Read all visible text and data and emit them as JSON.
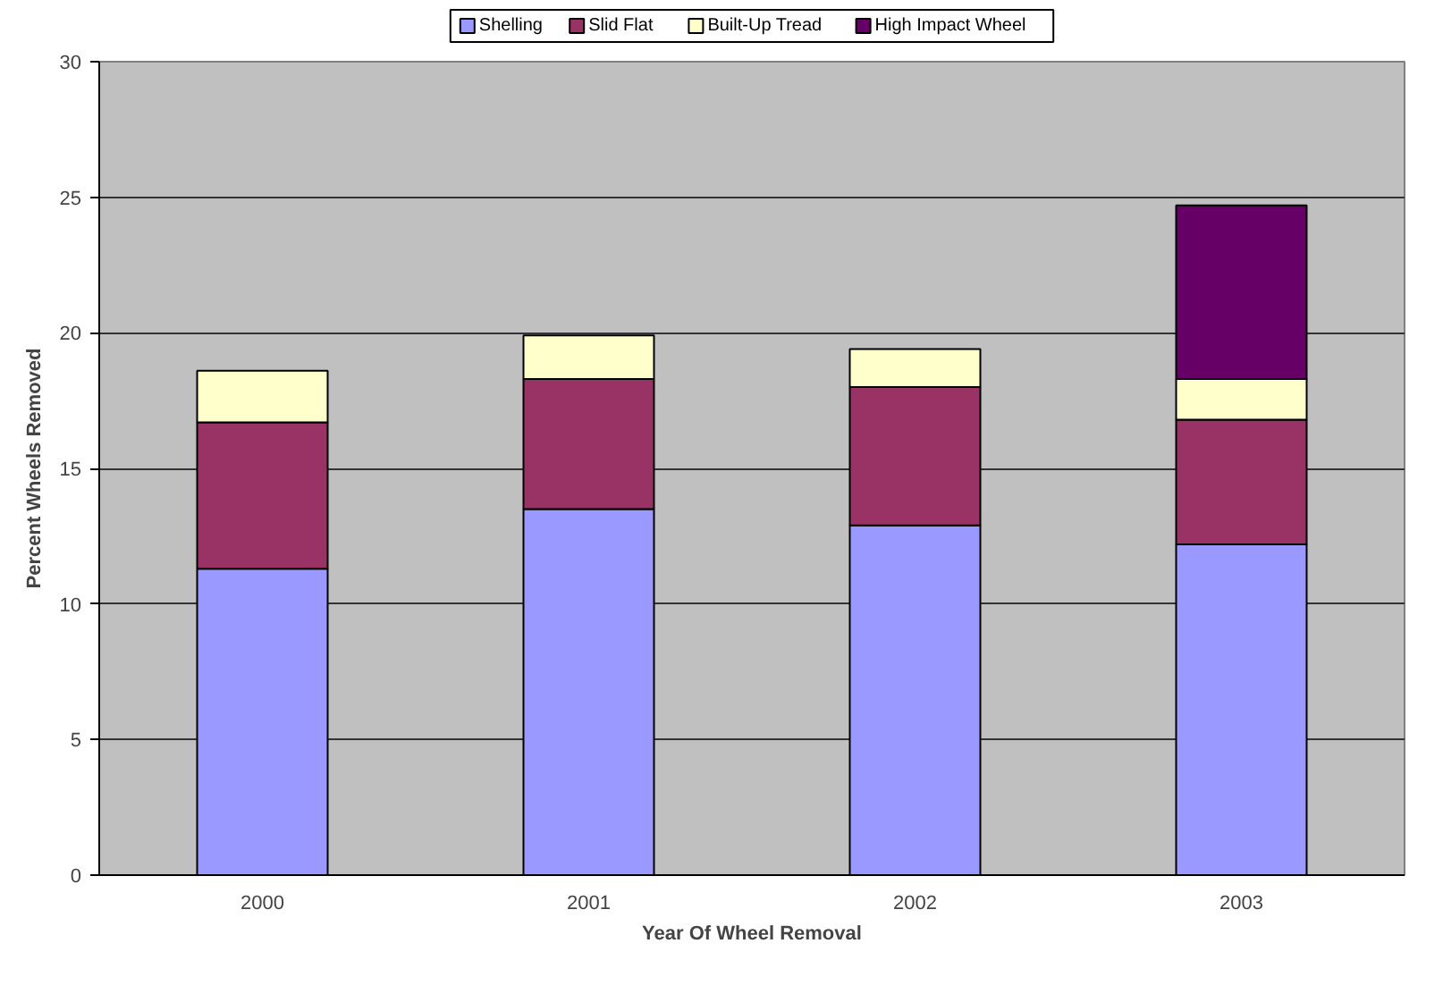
{
  "chart_data": {
    "type": "bar",
    "stacked": true,
    "xlabel": "Year Of Wheel Removal",
    "ylabel": "Percent Wheels Removed",
    "categories": [
      "2000",
      "2001",
      "2002",
      "2003"
    ],
    "series": [
      {
        "name": "Shelling",
        "color": "#9999ff",
        "values": [
          11.3,
          13.5,
          12.9,
          12.2
        ]
      },
      {
        "name": "Slid Flat",
        "color": "#993366",
        "values": [
          5.4,
          4.8,
          5.1,
          4.6
        ]
      },
      {
        "name": "Built-Up Tread",
        "color": "#ffffcc",
        "values": [
          1.9,
          1.6,
          1.4,
          1.5
        ]
      },
      {
        "name": "High Impact Wheel",
        "color": "#660066",
        "values": [
          0,
          0,
          0,
          6.4
        ]
      }
    ],
    "ylim": [
      0,
      30
    ],
    "yticks": [
      0,
      5,
      10,
      15,
      20,
      25,
      30
    ],
    "grid": "y",
    "legend": "top"
  }
}
